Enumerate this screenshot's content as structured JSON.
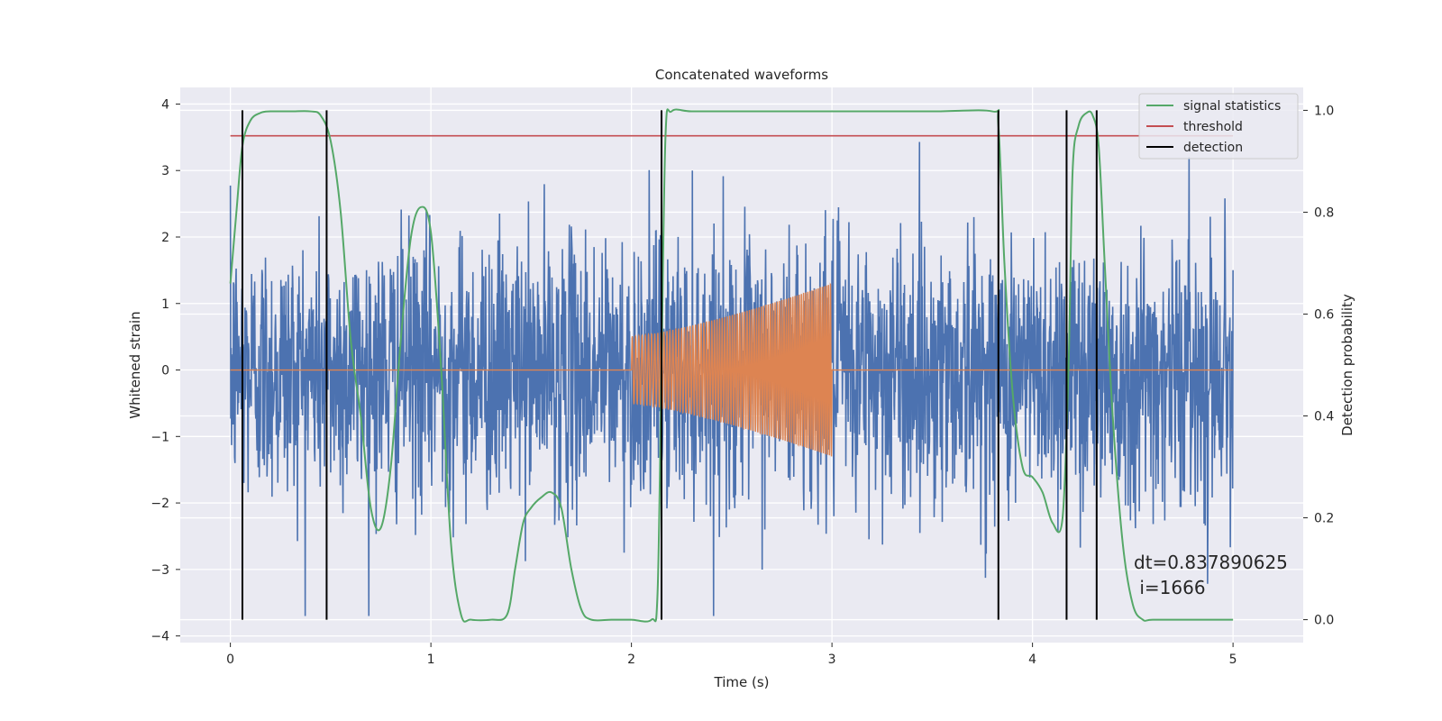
{
  "chart_data": {
    "type": "line",
    "title": "Concatenated waveforms",
    "xlabel": "Time (s)",
    "ylabel": "Whitened strain",
    "y2label": "Detection probability",
    "xlim": [
      -0.25,
      5.35
    ],
    "ylim": [
      -4.1,
      4.25
    ],
    "y2lim": [
      -0.045,
      1.045
    ],
    "xticks": [
      0,
      1,
      2,
      3,
      4,
      5
    ],
    "yticks": [
      -4,
      -3,
      -2,
      -1,
      0,
      1,
      2,
      3,
      4
    ],
    "y2ticks": [
      0.0,
      0.2,
      0.4,
      0.6,
      0.8,
      1.0
    ],
    "xtick_labels": [
      "0",
      "1",
      "2",
      "3",
      "4",
      "5"
    ],
    "ytick_labels": [
      "−4",
      "−3",
      "−2",
      "−1",
      "0",
      "1",
      "2",
      "3",
      "4"
    ],
    "y2tick_labels": [
      "0.0",
      "0.2",
      "0.4",
      "0.6",
      "0.8",
      "1.0"
    ],
    "grid": true,
    "legend_position": "top-right",
    "colors": {
      "background": "#eaeaf2",
      "grid": "#ffffff",
      "noise": "#4c72b0",
      "template": "#dd8452",
      "signal_statistics": "#55a868",
      "threshold": "#c44e52",
      "detection": "#000000"
    },
    "series": [
      {
        "role": "noise",
        "x_range": [
          0,
          5
        ],
        "typical_amplitude": 1.0,
        "extremes": {
          "min": -3.7,
          "max": 3.9
        }
      },
      {
        "role": "template",
        "x_range": [
          2.0,
          3.0
        ],
        "envelope_start": 0.5,
        "envelope_end": 1.3,
        "value_outside": 0
      },
      {
        "name": "signal statistics",
        "axis": "right",
        "x": [
          0.0,
          0.03,
          0.06,
          0.1,
          0.15,
          0.2,
          0.3,
          0.4,
          0.45,
          0.5,
          0.55,
          0.6,
          0.65,
          0.7,
          0.75,
          0.8,
          0.85,
          0.9,
          0.95,
          1.0,
          1.05,
          1.1,
          1.15,
          1.2,
          1.3,
          1.38,
          1.42,
          1.46,
          1.5,
          1.55,
          1.6,
          1.65,
          1.7,
          1.75,
          1.8,
          1.9,
          2.0,
          2.1,
          2.13,
          2.15,
          2.17,
          2.2,
          2.3,
          2.5,
          3.0,
          3.5,
          3.8,
          3.83,
          3.86,
          3.9,
          3.95,
          4.0,
          4.05,
          4.1,
          4.15,
          4.18,
          4.2,
          4.23,
          4.27,
          4.3,
          4.33,
          4.36,
          4.4,
          4.45,
          4.5,
          4.55,
          4.6,
          4.8,
          5.0
        ],
        "values": [
          0.66,
          0.8,
          0.93,
          0.98,
          0.995,
          0.998,
          0.998,
          0.998,
          0.99,
          0.94,
          0.8,
          0.55,
          0.4,
          0.22,
          0.18,
          0.3,
          0.55,
          0.75,
          0.81,
          0.76,
          0.5,
          0.15,
          0.01,
          0.0,
          0.0,
          0.01,
          0.1,
          0.19,
          0.22,
          0.24,
          0.25,
          0.22,
          0.1,
          0.02,
          0.0,
          0.0,
          0.0,
          0.0,
          0.05,
          0.5,
          0.95,
          0.998,
          0.998,
          0.998,
          0.998,
          0.998,
          0.998,
          0.97,
          0.7,
          0.45,
          0.3,
          0.28,
          0.25,
          0.19,
          0.2,
          0.5,
          0.88,
          0.97,
          0.995,
          0.99,
          0.93,
          0.7,
          0.4,
          0.15,
          0.03,
          0.0,
          0.0,
          0.0,
          0.0
        ]
      },
      {
        "name": "threshold",
        "axis": "right",
        "x": [
          0,
          5
        ],
        "values": [
          0.95,
          0.95
        ]
      },
      {
        "name": "detection",
        "axis": "right",
        "x": [
          0.06,
          0.48,
          2.15,
          3.83,
          4.17,
          4.32
        ],
        "y_range": [
          0.0,
          1.0
        ]
      }
    ],
    "legend": [
      "signal statistics",
      "threshold",
      "detection"
    ],
    "annotation": {
      "line1": "dt=0.837890625",
      "line2": " i=1666"
    }
  }
}
